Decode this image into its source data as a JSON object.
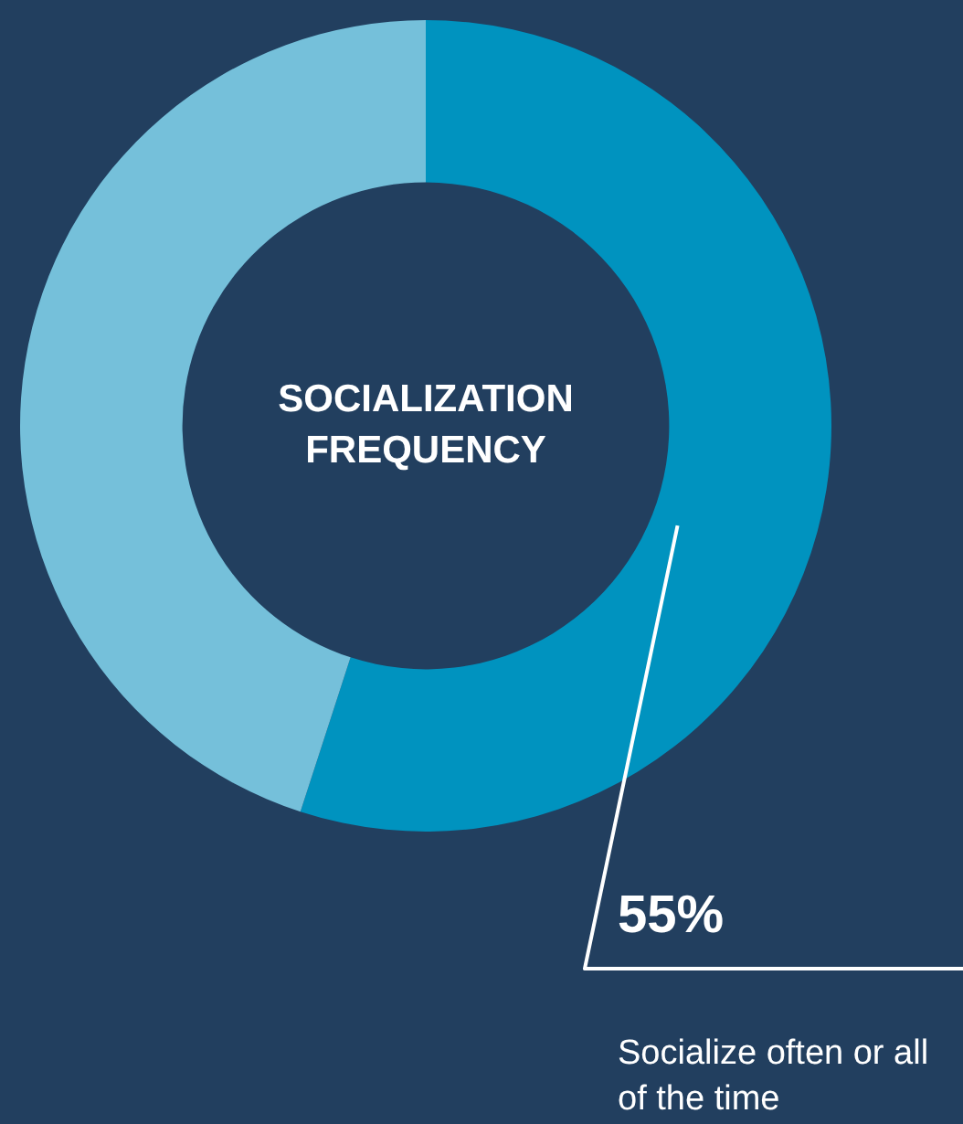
{
  "chart_data": {
    "type": "donut",
    "title": "SOCIALIZATION FREQUENCY",
    "categories": [
      "Socialize often or all of the time",
      null
    ],
    "values": [
      55,
      45
    ],
    "colors": [
      "#0093bf",
      "#75c0da"
    ],
    "value_labels": [
      "55%",
      null
    ],
    "legend": false
  }
}
